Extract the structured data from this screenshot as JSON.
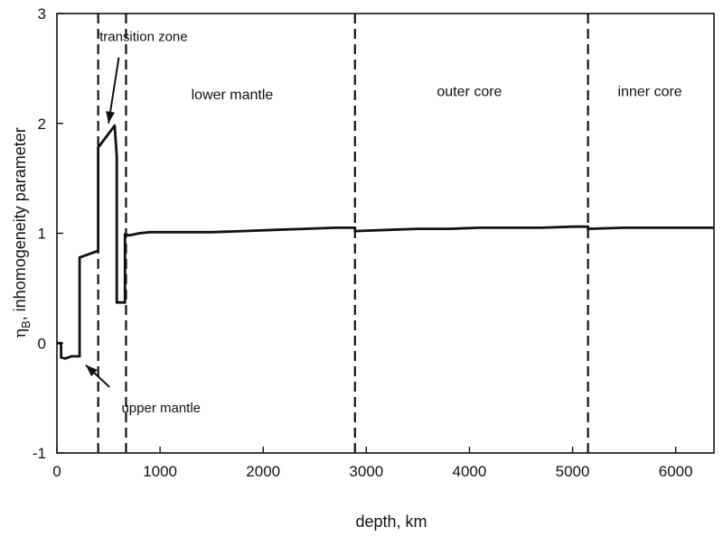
{
  "chart_data": {
    "type": "line",
    "title": "",
    "xlabel": "depth, km",
    "ylabel_symbol": "η",
    "ylabel_subscript": "B",
    "ylabel_text": ",   inhomogeneity   parameter",
    "xlim": [
      0,
      6371
    ],
    "ylim": [
      -1,
      3
    ],
    "xticks": [
      0,
      1000,
      2000,
      3000,
      4000,
      5000,
      6000
    ],
    "yticks": [
      -1,
      0,
      1,
      2,
      3
    ],
    "grid": false,
    "series": [
      {
        "x": [
          0,
          40,
          40,
          80,
          140,
          220,
          220,
          400,
          400,
          560,
          560,
          580,
          580,
          660,
          660,
          700,
          800,
          900,
          1200,
          1500,
          1800,
          2100,
          2400,
          2700,
          2890,
          2890,
          3200,
          3500,
          3800,
          4100,
          4400,
          4700,
          5000,
          5150,
          5150,
          5500,
          6000,
          6371
        ],
        "y": [
          0,
          0,
          -0.13,
          -0.14,
          -0.12,
          -0.12,
          0.78,
          0.84,
          1.78,
          1.98,
          1.98,
          1.7,
          0.37,
          0.37,
          0.99,
          0.98,
          1.0,
          1.01,
          1.01,
          1.01,
          1.02,
          1.03,
          1.04,
          1.05,
          1.05,
          1.02,
          1.03,
          1.04,
          1.04,
          1.05,
          1.05,
          1.05,
          1.06,
          1.06,
          1.04,
          1.05,
          1.05,
          1.05
        ]
      }
    ],
    "boundaries": [
      400,
      670,
      2890,
      5150
    ],
    "regions": [
      {
        "label": "lower mantle",
        "x": 1700,
        "y": 2.22
      },
      {
        "label": "outer core",
        "x": 4000,
        "y": 2.25
      },
      {
        "label": "inner core",
        "x": 5750,
        "y": 2.25
      }
    ],
    "annotations": [
      {
        "label": "transition zone",
        "text_x": 840,
        "text_y": 2.75,
        "arrow_from_x": 600,
        "arrow_from_y": 2.6,
        "arrow_to_x": 500,
        "arrow_to_y": 2.0
      },
      {
        "label": "upper mantle",
        "text_x": 1010,
        "text_y": -0.63,
        "arrow_from_x": 510,
        "arrow_from_y": -0.4,
        "arrow_to_x": 280,
        "arrow_to_y": -0.2
      }
    ]
  }
}
